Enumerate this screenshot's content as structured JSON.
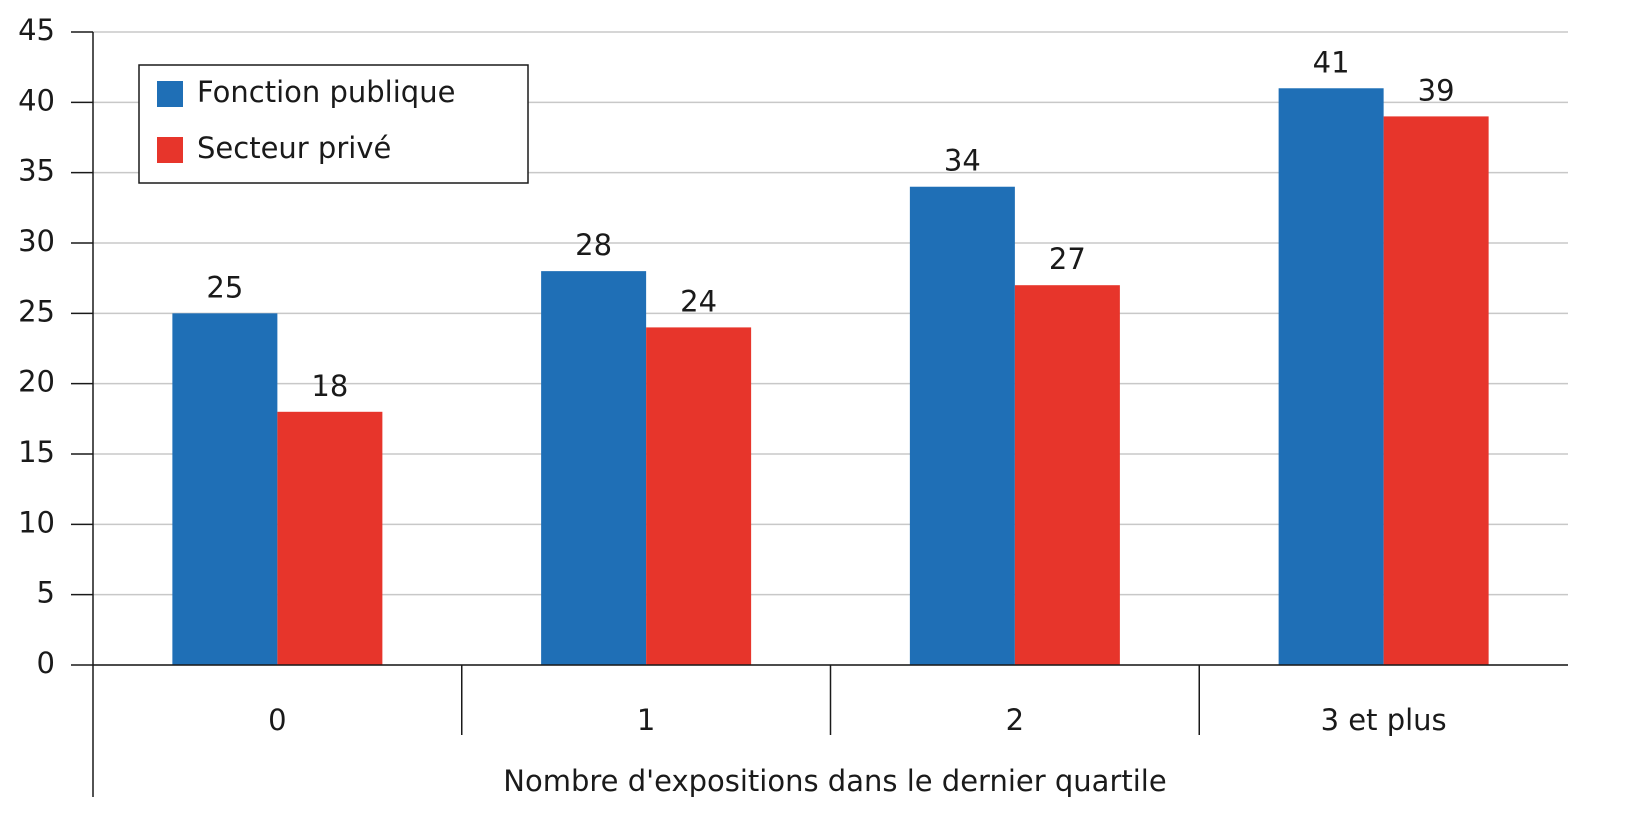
{
  "chart_data": {
    "type": "bar",
    "x_label": "Nombre d'expositions dans le dernier quartile",
    "categories": [
      "0",
      "1",
      "2",
      "3 et plus"
    ],
    "series": [
      {
        "name": "Fonction publique",
        "color": "#1f6fb6",
        "values": [
          25,
          28,
          34,
          41
        ]
      },
      {
        "name": "Secteur privé",
        "color": "#e7352b",
        "values": [
          18,
          24,
          27,
          39
        ]
      }
    ],
    "ylim": [
      0,
      45
    ],
    "yticks": [
      0,
      5,
      10,
      15,
      20,
      25,
      30,
      35,
      40,
      45
    ],
    "grid": true,
    "legend": "upper left"
  }
}
